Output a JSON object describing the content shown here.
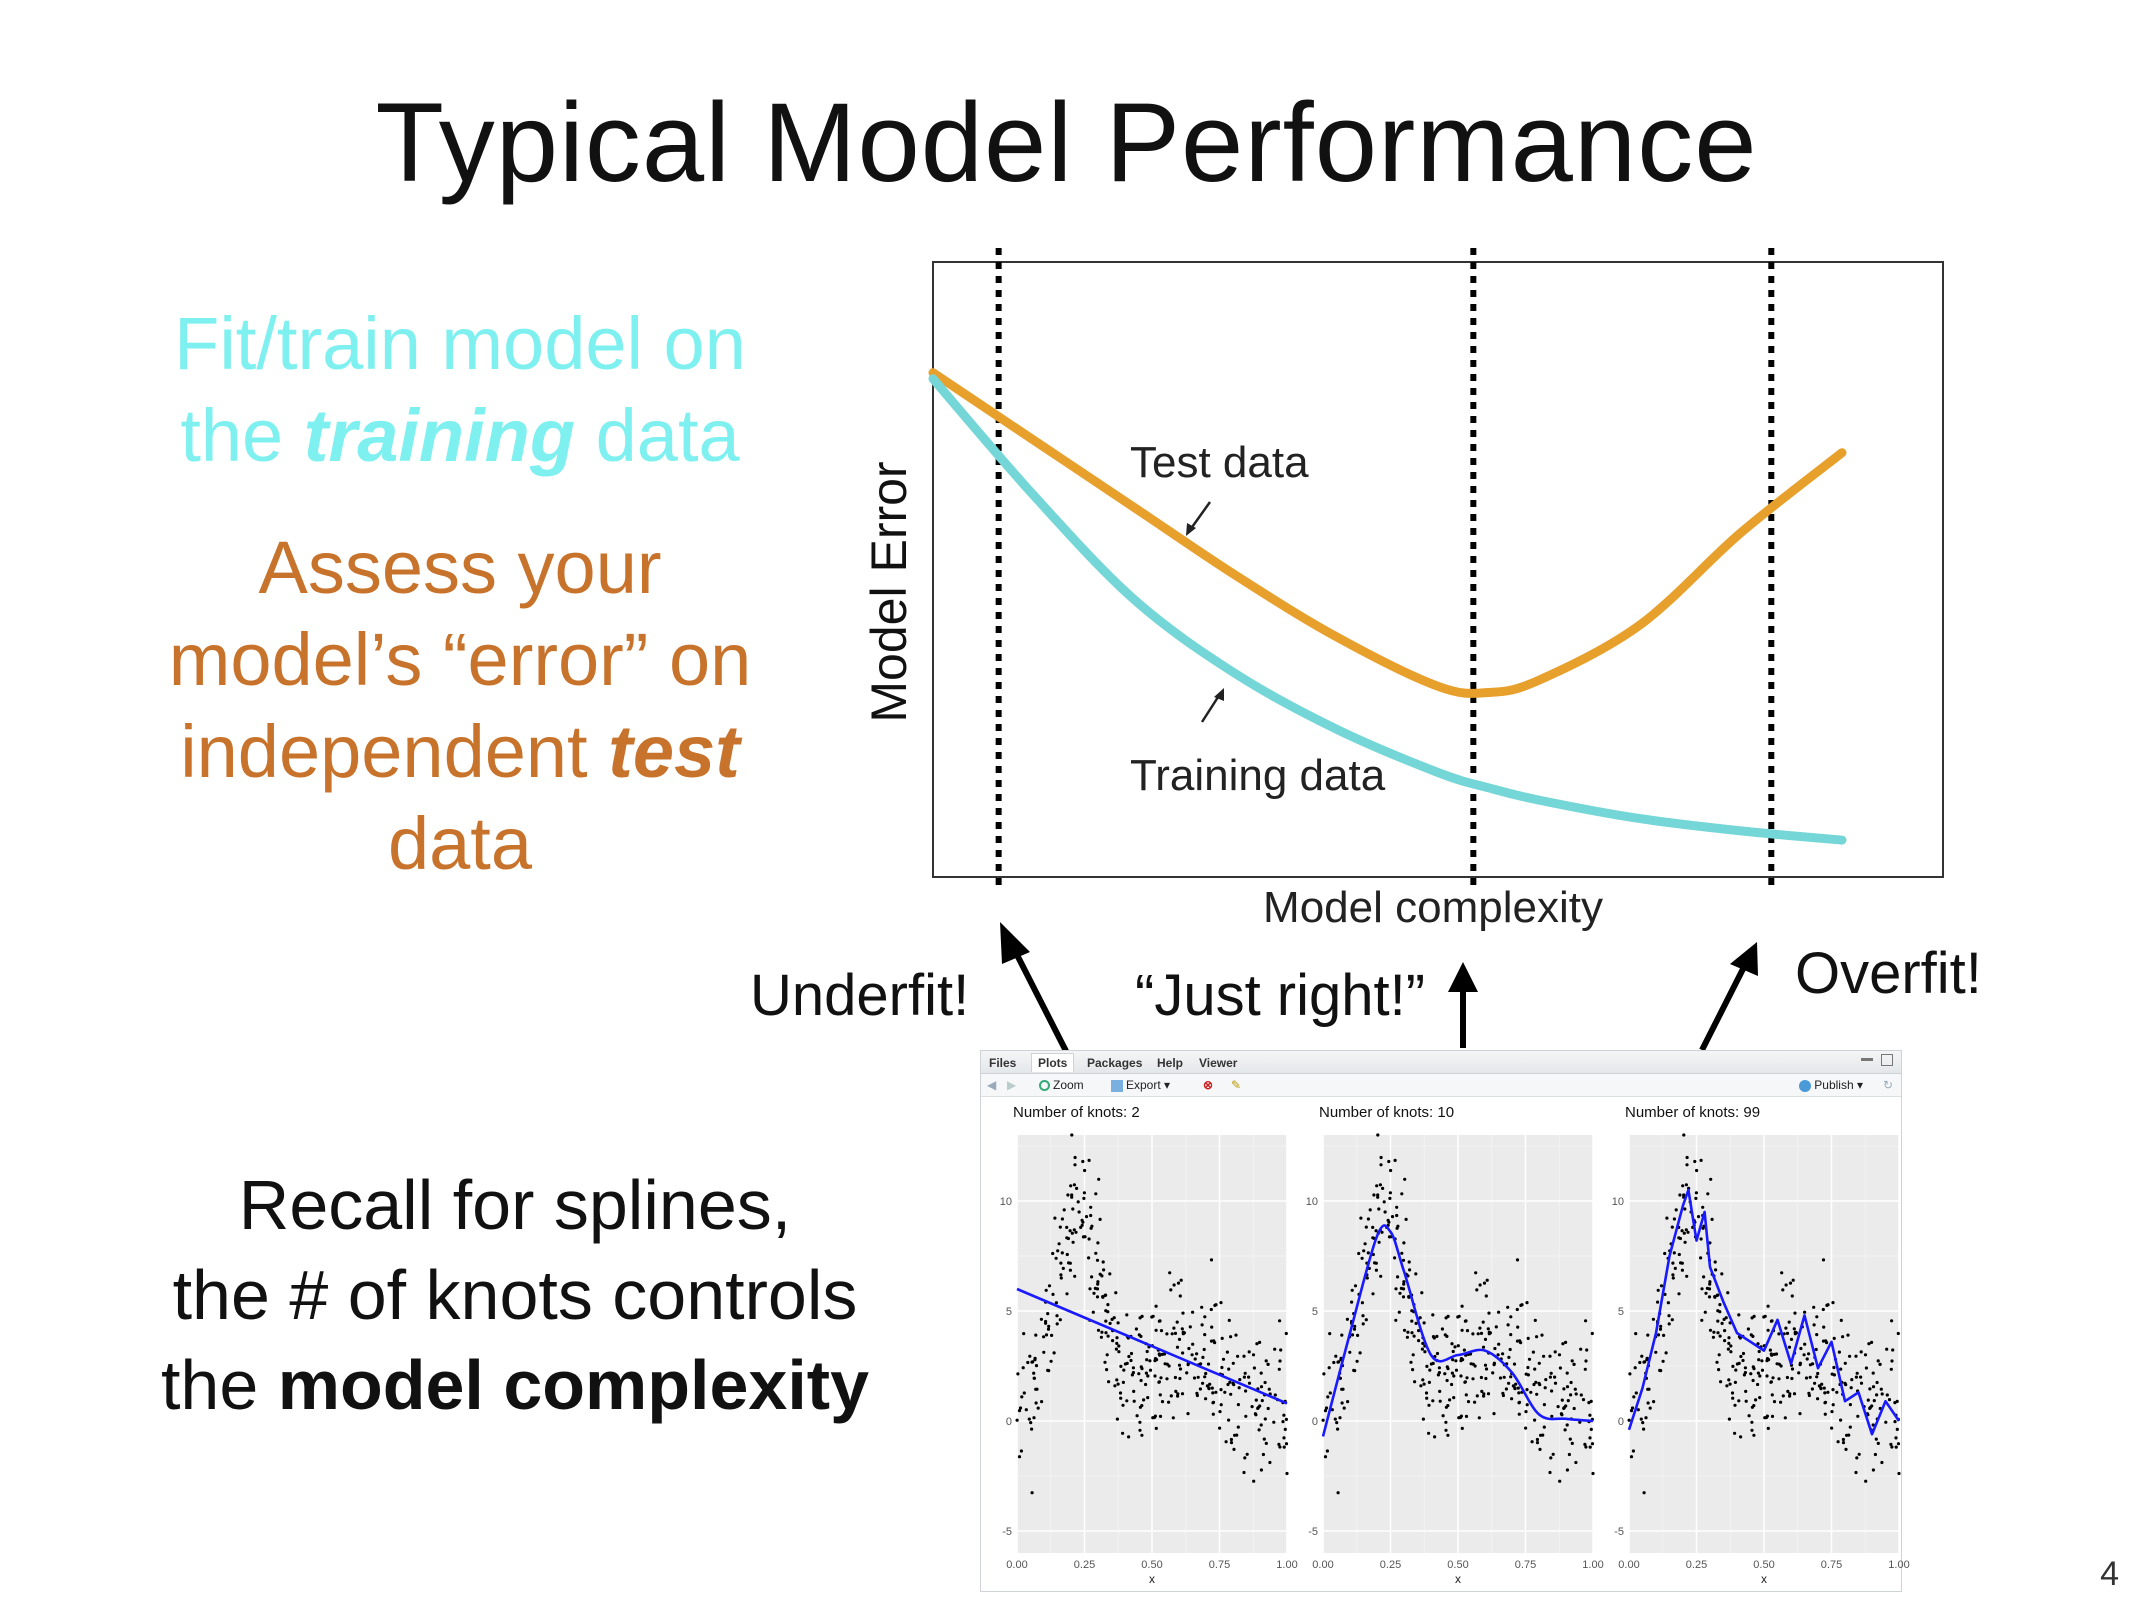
{
  "slide": {
    "title": "Typical Model Performance",
    "page_number": "4"
  },
  "train_text": {
    "line1": "Fit/train model on",
    "line2_pre": "the ",
    "line2_emph": "training",
    "line2_post": " data"
  },
  "test_text": {
    "line1": "Assess your",
    "line2": "model’s “error” on",
    "line3_pre": "independent ",
    "line3_emph": "test",
    "line4": "data"
  },
  "spline_text": {
    "line1": "Recall for splines,",
    "line2": "the # of knots controls",
    "line3_pre": "the ",
    "line3_emph": "model complexity"
  },
  "fit_labels": {
    "underfit": "Underfit!",
    "just_right": "“Just right!”",
    "overfit": "Overfit!"
  },
  "chart_data": [
    {
      "type": "line",
      "title": "",
      "xlabel": "Model complexity",
      "ylabel": "Model Error",
      "x_ticks": "none",
      "y_ticks": "none",
      "annotations": [
        "Test data",
        "Training data"
      ],
      "series": [
        {
          "name": "Test data",
          "color": "#e8a02c",
          "x": [
            0.0,
            0.1,
            0.2,
            0.3,
            0.4,
            0.5,
            0.55,
            0.6,
            0.7,
            0.8,
            0.9
          ],
          "y": [
            0.82,
            0.71,
            0.6,
            0.49,
            0.39,
            0.31,
            0.3,
            0.32,
            0.41,
            0.56,
            0.69
          ]
        },
        {
          "name": "Training data",
          "color": "#74d6d6",
          "x": [
            0.0,
            0.1,
            0.2,
            0.3,
            0.4,
            0.5,
            0.55,
            0.6,
            0.7,
            0.8,
            0.9
          ],
          "y": [
            0.81,
            0.62,
            0.45,
            0.33,
            0.24,
            0.17,
            0.145,
            0.125,
            0.095,
            0.075,
            0.06
          ]
        }
      ],
      "vlines": [
        0.065,
        0.535,
        0.83
      ],
      "grid": false,
      "legend": "none"
    },
    {
      "type": "scatter",
      "title": "Number of knots: 2",
      "xlabel": "x",
      "ylabel": "",
      "xlim": [
        0,
        1
      ],
      "ylim": [
        -6,
        13
      ],
      "x_ticks": [
        "0.00",
        "0.25",
        "0.50",
        "0.75",
        "1.00"
      ],
      "y_ticks": [
        "-5",
        "0",
        "5",
        "10"
      ],
      "fit_line": {
        "x": [
          0,
          1
        ],
        "y": [
          6.0,
          0.8
        ]
      }
    },
    {
      "type": "scatter",
      "title": "Number of knots: 10",
      "xlabel": "x",
      "ylabel": "",
      "xlim": [
        0,
        1
      ],
      "ylim": [
        -6,
        13
      ],
      "x_ticks": [
        "0.00",
        "0.25",
        "0.50",
        "0.75",
        "1.00"
      ],
      "y_ticks": [
        "-5",
        "0",
        "5",
        "10"
      ],
      "fit_line": {
        "x": [
          0,
          0.1,
          0.2,
          0.25,
          0.3,
          0.4,
          0.5,
          0.6,
          0.7,
          0.8,
          0.9,
          1.0
        ],
        "y": [
          -0.7,
          4.0,
          8.4,
          8.6,
          6.8,
          3.0,
          3.0,
          3.2,
          2.2,
          0.3,
          0.1,
          0.0
        ]
      }
    },
    {
      "type": "scatter",
      "title": "Number of knots: 99",
      "xlabel": "x",
      "ylabel": "",
      "xlim": [
        0,
        1
      ],
      "ylim": [
        -6,
        13
      ],
      "x_ticks": [
        "0.00",
        "0.25",
        "0.50",
        "0.75",
        "1.00"
      ],
      "y_ticks": [
        "-5",
        "0",
        "5",
        "10"
      ],
      "fit_line": {
        "x": [
          0,
          0.05,
          0.1,
          0.15,
          0.2,
          0.22,
          0.25,
          0.28,
          0.3,
          0.35,
          0.4,
          0.45,
          0.5,
          0.55,
          0.6,
          0.65,
          0.7,
          0.75,
          0.8,
          0.85,
          0.9,
          0.95,
          1.0
        ],
        "y": [
          -0.4,
          1.5,
          4.0,
          7.5,
          9.8,
          10.5,
          8.2,
          9.5,
          7.0,
          5.4,
          4.0,
          3.6,
          3.2,
          4.6,
          2.6,
          4.8,
          2.4,
          3.6,
          0.9,
          1.3,
          -0.6,
          0.9,
          0.0
        ]
      }
    }
  ],
  "rstudio": {
    "tabs": [
      "Files",
      "Plots",
      "Packages",
      "Help",
      "Viewer"
    ],
    "active_tab": "Plots",
    "toolbar": {
      "zoom": "Zoom",
      "export": "Export ▾",
      "publish": "Publish ▾"
    }
  }
}
